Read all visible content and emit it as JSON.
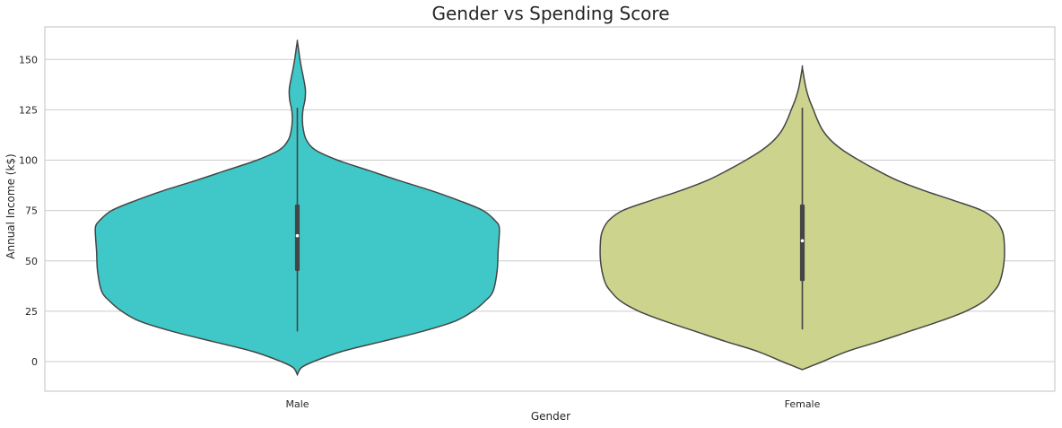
{
  "chart_data": {
    "type": "violin",
    "title": "Gender vs Spending Score",
    "xlabel": "Gender",
    "ylabel": "Annual Income (k$)",
    "ylim": [
      -15,
      166
    ],
    "yticks": [
      0,
      25,
      50,
      75,
      100,
      125,
      150
    ],
    "grid": true,
    "categories": [
      "Male",
      "Female"
    ],
    "series": [
      {
        "category": "Male",
        "color": "#40c8c8",
        "range": [
          -6.5,
          159
        ],
        "whisker": [
          15,
          126
        ],
        "iqr": [
          45,
          78
        ],
        "median": 62.5,
        "density_profile": [
          [
            -6.5,
            0.0
          ],
          [
            -3,
            0.02
          ],
          [
            0,
            0.08
          ],
          [
            5,
            0.22
          ],
          [
            10,
            0.42
          ],
          [
            15,
            0.62
          ],
          [
            20,
            0.78
          ],
          [
            25,
            0.87
          ],
          [
            30,
            0.93
          ],
          [
            35,
            0.97
          ],
          [
            45,
            0.99
          ],
          [
            55,
            0.995
          ],
          [
            62,
            1.0
          ],
          [
            67,
            1.0
          ],
          [
            70,
            0.98
          ],
          [
            75,
            0.92
          ],
          [
            80,
            0.8
          ],
          [
            85,
            0.66
          ],
          [
            90,
            0.5
          ],
          [
            95,
            0.35
          ],
          [
            100,
            0.2
          ],
          [
            105,
            0.09
          ],
          [
            110,
            0.045
          ],
          [
            115,
            0.03
          ],
          [
            120,
            0.025
          ],
          [
            125,
            0.028
          ],
          [
            130,
            0.038
          ],
          [
            135,
            0.04
          ],
          [
            140,
            0.032
          ],
          [
            145,
            0.022
          ],
          [
            150,
            0.013
          ],
          [
            155,
            0.006
          ],
          [
            159,
            0.0
          ]
        ]
      },
      {
        "category": "Female",
        "color": "#ccd38c",
        "range": [
          -4,
          146
        ],
        "whisker": [
          16,
          126
        ],
        "iqr": [
          40,
          78
        ],
        "median": 60,
        "density_profile": [
          [
            -4,
            0.0
          ],
          [
            -2,
            0.05
          ],
          [
            0,
            0.1
          ],
          [
            5,
            0.22
          ],
          [
            10,
            0.38
          ],
          [
            15,
            0.53
          ],
          [
            20,
            0.68
          ],
          [
            25,
            0.81
          ],
          [
            30,
            0.9
          ],
          [
            35,
            0.95
          ],
          [
            40,
            0.98
          ],
          [
            50,
            1.0
          ],
          [
            60,
            1.0
          ],
          [
            65,
            0.99
          ],
          [
            70,
            0.96
          ],
          [
            75,
            0.89
          ],
          [
            80,
            0.75
          ],
          [
            85,
            0.6
          ],
          [
            90,
            0.47
          ],
          [
            95,
            0.37
          ],
          [
            100,
            0.28
          ],
          [
            105,
            0.2
          ],
          [
            110,
            0.14
          ],
          [
            115,
            0.1
          ],
          [
            120,
            0.075
          ],
          [
            125,
            0.055
          ],
          [
            130,
            0.035
          ],
          [
            135,
            0.02
          ],
          [
            140,
            0.01
          ],
          [
            146,
            0.0
          ]
        ]
      }
    ]
  }
}
